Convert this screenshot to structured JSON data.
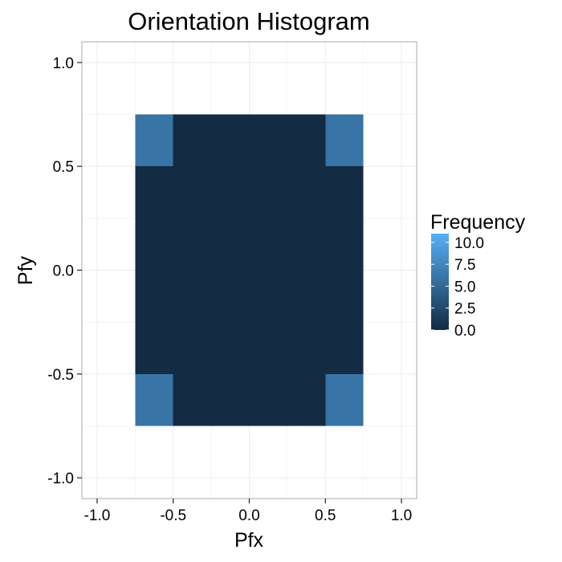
{
  "chart_data": {
    "type": "heatmap",
    "title": "Orientation Histogram",
    "xlabel": "Pfx",
    "ylabel": "Pfy",
    "xlim": [
      -1.1,
      1.1
    ],
    "ylim": [
      -1.1,
      1.1
    ],
    "x_ticks": [
      -1.0,
      -0.5,
      0.0,
      0.5,
      1.0
    ],
    "y_ticks": [
      -1.0,
      -0.5,
      0.0,
      0.5,
      1.0
    ],
    "x_tick_labels": [
      "-1.0",
      "-0.5",
      "0.0",
      "0.5",
      "1.0"
    ],
    "y_tick_labels": [
      "-1.0",
      "-0.5",
      "0.0",
      "0.5",
      "1.0"
    ],
    "grid": true,
    "cells": [
      {
        "x0": -0.75,
        "x1": -0.5,
        "y0": 0.5,
        "y1": 0.75,
        "value": 6
      },
      {
        "x0": -0.5,
        "x1": 0.5,
        "y0": 0.5,
        "y1": 0.75,
        "value": 0
      },
      {
        "x0": 0.5,
        "x1": 0.75,
        "y0": 0.5,
        "y1": 0.75,
        "value": 6
      },
      {
        "x0": -0.75,
        "x1": 0.75,
        "y0": -0.5,
        "y1": 0.5,
        "value": 0
      },
      {
        "x0": -0.75,
        "x1": -0.5,
        "y0": -0.75,
        "y1": -0.5,
        "value": 6
      },
      {
        "x0": -0.5,
        "x1": 0.5,
        "y0": -0.75,
        "y1": -0.5,
        "value": 0
      },
      {
        "x0": 0.5,
        "x1": 0.75,
        "y0": -0.75,
        "y1": -0.5,
        "value": 6
      }
    ],
    "legend": {
      "title": "Frequency",
      "placement": "right",
      "min": 0,
      "max": 11,
      "ticks": [
        0.0,
        2.5,
        5.0,
        7.5,
        10.0
      ],
      "tick_labels": [
        "0.0",
        "2.5",
        "5.0",
        "7.5",
        "10.0"
      ],
      "low_color": "#132B43",
      "high_color": "#56B1F7"
    },
    "colors": {
      "panel_background": "#ffffff",
      "panel_border": "#aaaaaa",
      "grid_major": "#ebebeb",
      "grid_minor": "#f5f5f5"
    }
  }
}
